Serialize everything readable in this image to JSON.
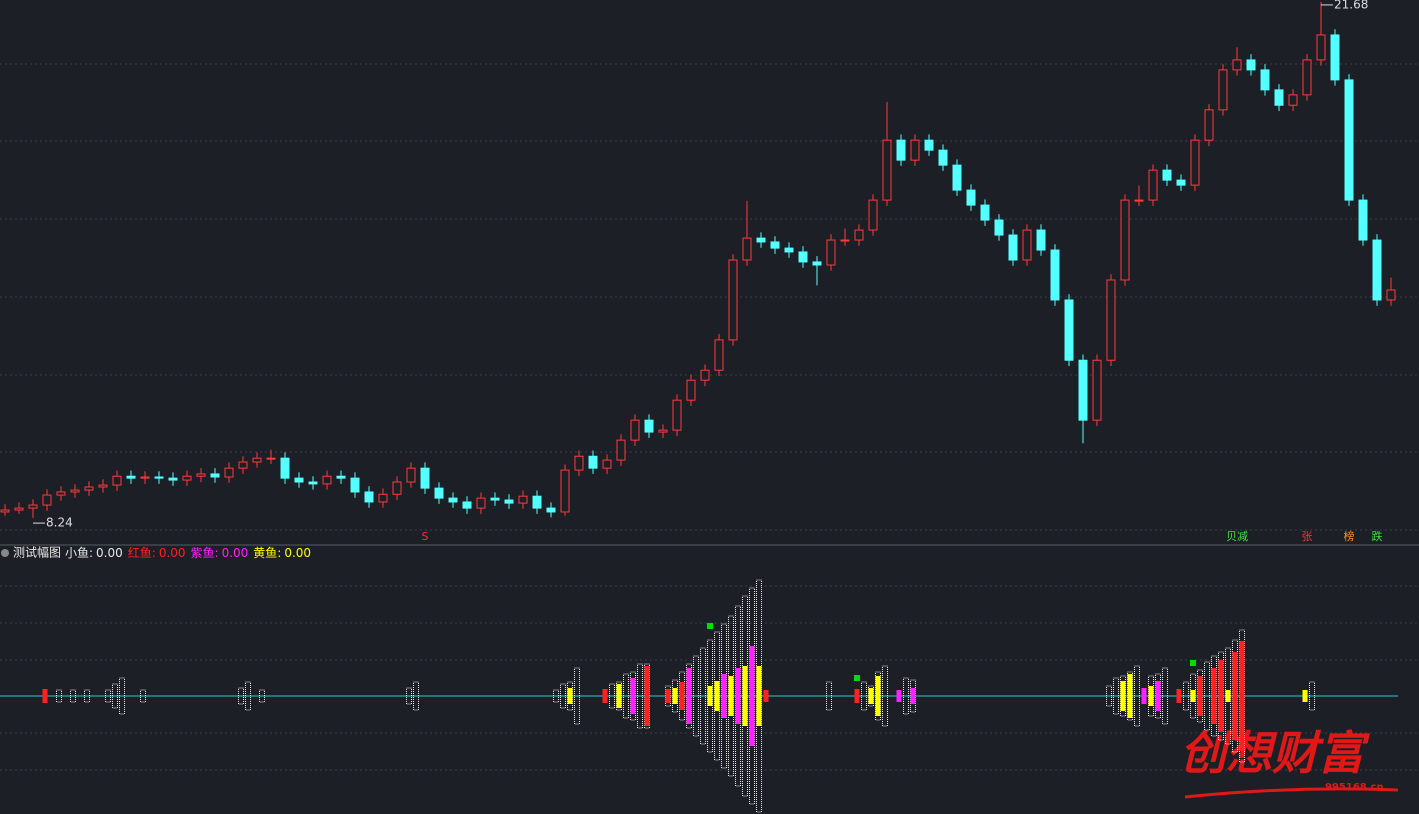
{
  "chart_data": [
    {
      "type": "candlestick",
      "ylim": [
        7.93,
        21.73
      ],
      "up_color": "#ff3b3b",
      "down_color": "#54ffff",
      "candles": [
        [
          8.4,
          8.6,
          8.3,
          8.45
        ],
        [
          8.45,
          8.65,
          8.35,
          8.5
        ],
        [
          8.5,
          8.73,
          8.24,
          8.58
        ],
        [
          8.58,
          8.99,
          8.43,
          8.84
        ],
        [
          8.84,
          9.07,
          8.69,
          8.92
        ],
        [
          8.92,
          9.12,
          8.77,
          8.97
        ],
        [
          8.97,
          9.2,
          8.82,
          9.05
        ],
        [
          9.05,
          9.25,
          8.9,
          9.1
        ],
        [
          9.1,
          9.48,
          8.95,
          9.33
        ],
        [
          9.33,
          9.48,
          9.13,
          9.28
        ],
        [
          9.28,
          9.46,
          9.13,
          9.31
        ],
        [
          9.31,
          9.46,
          9.13,
          9.28
        ],
        [
          9.28,
          9.43,
          9.08,
          9.23
        ],
        [
          9.23,
          9.48,
          9.08,
          9.33
        ],
        [
          9.33,
          9.54,
          9.18,
          9.39
        ],
        [
          9.39,
          9.54,
          9.16,
          9.31
        ],
        [
          9.31,
          9.69,
          9.16,
          9.54
        ],
        [
          9.54,
          9.85,
          9.39,
          9.7
        ],
        [
          9.7,
          9.95,
          9.55,
          9.8
        ],
        [
          9.8,
          10.02,
          9.65,
          9.8
        ],
        [
          9.8,
          9.95,
          9.13,
          9.28
        ],
        [
          9.28,
          9.43,
          9.03,
          9.18
        ],
        [
          9.18,
          9.33,
          8.98,
          9.13
        ],
        [
          9.13,
          9.48,
          8.98,
          9.33
        ],
        [
          9.33,
          9.48,
          9.13,
          9.28
        ],
        [
          9.28,
          9.43,
          8.77,
          8.92
        ],
        [
          8.92,
          9.07,
          8.51,
          8.66
        ],
        [
          8.66,
          9.01,
          8.51,
          8.86
        ],
        [
          8.86,
          9.33,
          8.71,
          9.18
        ],
        [
          9.18,
          9.69,
          9.03,
          9.54
        ],
        [
          9.54,
          9.69,
          8.87,
          9.02
        ],
        [
          9.02,
          9.17,
          8.61,
          8.76
        ],
        [
          8.76,
          8.91,
          8.51,
          8.66
        ],
        [
          8.66,
          8.81,
          8.35,
          8.5
        ],
        [
          8.5,
          8.91,
          8.35,
          8.76
        ],
        [
          8.76,
          8.91,
          8.56,
          8.71
        ],
        [
          8.71,
          8.86,
          8.48,
          8.63
        ],
        [
          8.63,
          8.96,
          8.48,
          8.81
        ],
        [
          8.81,
          8.96,
          8.35,
          8.5
        ],
        [
          8.5,
          8.65,
          8.26,
          8.4
        ],
        [
          8.4,
          9.64,
          8.3,
          9.49
        ],
        [
          9.49,
          10.0,
          9.34,
          9.85
        ],
        [
          9.85,
          10.0,
          9.39,
          9.54
        ],
        [
          9.54,
          9.9,
          9.39,
          9.75
        ],
        [
          9.75,
          10.42,
          9.6,
          10.27
        ],
        [
          10.27,
          10.94,
          10.12,
          10.79
        ],
        [
          10.79,
          10.94,
          10.33,
          10.48
        ],
        [
          10.48,
          10.68,
          10.33,
          10.53
        ],
        [
          10.53,
          11.46,
          10.38,
          11.31
        ],
        [
          11.31,
          11.98,
          11.16,
          11.83
        ],
        [
          11.83,
          12.24,
          11.68,
          12.09
        ],
        [
          12.09,
          13.03,
          11.94,
          12.88
        ],
        [
          12.88,
          15.11,
          12.73,
          14.96
        ],
        [
          14.96,
          16.5,
          14.81,
          15.53
        ],
        [
          15.53,
          15.68,
          15.28,
          15.43
        ],
        [
          15.43,
          15.58,
          15.12,
          15.27
        ],
        [
          15.27,
          15.42,
          15.02,
          15.17
        ],
        [
          15.17,
          15.32,
          14.76,
          14.91
        ],
        [
          14.91,
          15.06,
          14.3,
          14.83
        ],
        [
          14.83,
          15.63,
          14.68,
          15.48
        ],
        [
          15.48,
          15.78,
          15.33,
          15.48
        ],
        [
          15.48,
          15.89,
          15.33,
          15.74
        ],
        [
          15.74,
          16.67,
          15.59,
          16.52
        ],
        [
          16.52,
          19.07,
          16.37,
          18.08
        ],
        [
          18.08,
          18.23,
          17.41,
          17.56
        ],
        [
          17.56,
          18.23,
          17.41,
          18.08
        ],
        [
          18.08,
          18.23,
          17.67,
          17.82
        ],
        [
          17.82,
          17.97,
          17.28,
          17.43
        ],
        [
          17.43,
          17.58,
          16.63,
          16.78
        ],
        [
          16.78,
          16.93,
          16.24,
          16.39
        ],
        [
          16.39,
          16.54,
          15.85,
          16.0
        ],
        [
          16.0,
          16.15,
          15.46,
          15.61
        ],
        [
          15.61,
          15.76,
          14.81,
          14.96
        ],
        [
          14.96,
          15.89,
          14.81,
          15.74
        ],
        [
          15.74,
          15.89,
          15.07,
          15.22
        ],
        [
          15.22,
          15.37,
          13.77,
          13.92
        ],
        [
          13.92,
          14.07,
          12.2,
          12.35
        ],
        [
          12.35,
          12.5,
          10.19,
          10.79
        ],
        [
          10.79,
          12.5,
          10.64,
          12.35
        ],
        [
          12.35,
          14.59,
          12.2,
          14.44
        ],
        [
          14.44,
          16.67,
          14.29,
          16.52
        ],
        [
          16.52,
          16.9,
          16.37,
          16.52
        ],
        [
          16.52,
          17.45,
          16.37,
          17.3
        ],
        [
          17.3,
          17.45,
          16.89,
          17.04
        ],
        [
          17.04,
          17.19,
          16.76,
          16.91
        ],
        [
          16.91,
          18.23,
          16.76,
          18.08
        ],
        [
          18.08,
          19.02,
          17.93,
          18.87
        ],
        [
          18.87,
          20.06,
          18.72,
          19.91
        ],
        [
          19.91,
          20.5,
          19.76,
          20.17
        ],
        [
          20.17,
          20.32,
          19.76,
          19.91
        ],
        [
          19.91,
          20.06,
          19.24,
          19.39
        ],
        [
          19.39,
          19.54,
          18.84,
          18.99
        ],
        [
          18.99,
          19.41,
          18.84,
          19.26
        ],
        [
          19.26,
          20.32,
          19.11,
          20.17
        ],
        [
          20.17,
          21.68,
          20.02,
          20.82
        ],
        [
          20.82,
          20.97,
          19.5,
          19.65
        ],
        [
          19.65,
          19.8,
          16.37,
          16.52
        ],
        [
          16.52,
          16.67,
          15.33,
          15.48
        ],
        [
          15.48,
          15.63,
          13.77,
          13.92
        ],
        [
          13.92,
          14.5,
          13.77,
          14.18
        ]
      ],
      "low_label": "8.24",
      "high_label": "21.68",
      "markers": [
        {
          "index": 30,
          "label": "S",
          "color": "#ff3030"
        },
        {
          "index": 88,
          "label": "贝减",
          "color": "#40e040"
        },
        {
          "index": 93,
          "label": "张",
          "color": "#ff3030"
        },
        {
          "index": 96,
          "label": "榜",
          "color": "#ff9020"
        },
        {
          "index": 98,
          "label": "跌",
          "color": "#40e040"
        }
      ]
    },
    {
      "type": "fish",
      "title": "测试幅图",
      "ylim": [
        -120,
        120
      ],
      "baseline_color": "#30c8d0",
      "series": [
        {
          "name": "小鱼:",
          "color": "#e8e8e8",
          "value": 0,
          "value_label": "0.00"
        },
        {
          "name": "红鱼:",
          "color": "#ff2020",
          "value": 0,
          "value_label": "0.00"
        },
        {
          "name": "紫鱼:",
          "color": "#ff20ff",
          "value": 0,
          "value_label": "0.00"
        },
        {
          "name": "黄鱼:",
          "color": "#ffff00",
          "value": 0,
          "value_label": "0.00"
        }
      ],
      "bars": [
        [
          6,
          1,
          7
        ],
        [
          8,
          0,
          6
        ],
        [
          10,
          0,
          6
        ],
        [
          12,
          0,
          6
        ],
        [
          15,
          0,
          6
        ],
        [
          16,
          0,
          12
        ],
        [
          17,
          0,
          18
        ],
        [
          20,
          0,
          6
        ],
        [
          34,
          0,
          8
        ],
        [
          35,
          0,
          14
        ],
        [
          37,
          0,
          6
        ],
        [
          58,
          0,
          8
        ],
        [
          59,
          0,
          14
        ],
        [
          79,
          0,
          6
        ],
        [
          80,
          0,
          12
        ],
        [
          81,
          0,
          14
        ],
        [
          81,
          3,
          8
        ],
        [
          82,
          0,
          28
        ],
        [
          86,
          1,
          7
        ],
        [
          87,
          0,
          12
        ],
        [
          88,
          0,
          14
        ],
        [
          88,
          3,
          12
        ],
        [
          89,
          0,
          22
        ],
        [
          90,
          0,
          24
        ],
        [
          90,
          2,
          18
        ],
        [
          91,
          0,
          32
        ],
        [
          92,
          0,
          32
        ],
        [
          92,
          1,
          30
        ],
        [
          95,
          0,
          10
        ],
        [
          95,
          1,
          7
        ],
        [
          96,
          0,
          16
        ],
        [
          96,
          3,
          8
        ],
        [
          97,
          0,
          24
        ],
        [
          97,
          1,
          14
        ],
        [
          98,
          0,
          32
        ],
        [
          98,
          2,
          28
        ],
        [
          99,
          0,
          40
        ],
        [
          100,
          0,
          48
        ],
        [
          101,
          0,
          56
        ],
        [
          101,
          3,
          10
        ],
        [
          102,
          0,
          64
        ],
        [
          102,
          3,
          15
        ],
        [
          103,
          0,
          72
        ],
        [
          103,
          2,
          22
        ],
        [
          104,
          0,
          80
        ],
        [
          104,
          3,
          20
        ],
        [
          105,
          0,
          90
        ],
        [
          105,
          2,
          28
        ],
        [
          106,
          0,
          100
        ],
        [
          106,
          3,
          30
        ],
        [
          107,
          0,
          108
        ],
        [
          107,
          2,
          50
        ],
        [
          108,
          0,
          116
        ],
        [
          108,
          3,
          30
        ],
        [
          109,
          1,
          6
        ],
        [
          118,
          0,
          14
        ],
        [
          122,
          1,
          7
        ],
        [
          123,
          0,
          14
        ],
        [
          124,
          0,
          10
        ],
        [
          124,
          3,
          8
        ],
        [
          125,
          0,
          24
        ],
        [
          125,
          3,
          20
        ],
        [
          126,
          0,
          30
        ],
        [
          128,
          2,
          6
        ],
        [
          129,
          0,
          18
        ],
        [
          130,
          0,
          16
        ],
        [
          130,
          2,
          8
        ],
        [
          158,
          0,
          10
        ],
        [
          159,
          0,
          18
        ],
        [
          160,
          0,
          20
        ],
        [
          160,
          3,
          15
        ],
        [
          161,
          0,
          24
        ],
        [
          161,
          3,
          22
        ],
        [
          162,
          0,
          30
        ],
        [
          163,
          2,
          8
        ],
        [
          164,
          0,
          20
        ],
        [
          164,
          3,
          10
        ],
        [
          165,
          0,
          22
        ],
        [
          165,
          2,
          15
        ],
        [
          166,
          0,
          28
        ],
        [
          168,
          1,
          7
        ],
        [
          169,
          0,
          14
        ],
        [
          170,
          0,
          22
        ],
        [
          170,
          3,
          6
        ],
        [
          171,
          0,
          26
        ],
        [
          171,
          1,
          20
        ],
        [
          172,
          0,
          34
        ],
        [
          173,
          0,
          40
        ],
        [
          173,
          1,
          28
        ],
        [
          174,
          0,
          44
        ],
        [
          174,
          1,
          36
        ],
        [
          175,
          0,
          48
        ],
        [
          175,
          3,
          6
        ],
        [
          176,
          0,
          56
        ],
        [
          176,
          1,
          44
        ],
        [
          177,
          0,
          66
        ],
        [
          177,
          1,
          55
        ],
        [
          186,
          3,
          6
        ],
        [
          187,
          0,
          14
        ]
      ],
      "signals": {
        "color": "#00e000",
        "points": [
          [
            101,
            70
          ],
          [
            122,
            18
          ],
          [
            170,
            33
          ]
        ]
      }
    }
  ],
  "watermark": {
    "text": "创想财富",
    "url": "995168.cn"
  }
}
